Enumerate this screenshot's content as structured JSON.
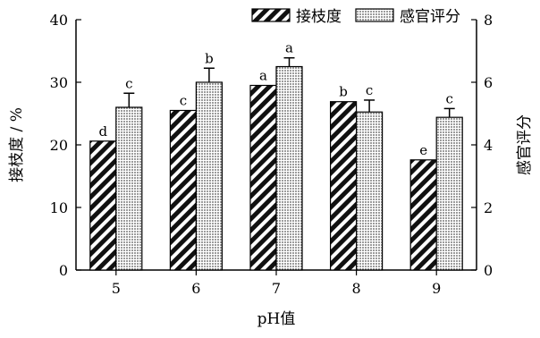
{
  "chart_data": {
    "type": "bar",
    "xlabel": "pH值",
    "ylabel_left": "接枝度 / %",
    "ylabel_right": "感官评分",
    "categories": [
      "5",
      "6",
      "7",
      "8",
      "9"
    ],
    "ylim_left": [
      0,
      40
    ],
    "yticks_left": [
      "0",
      "10",
      "20",
      "30",
      "40"
    ],
    "ylim_right": [
      0,
      8
    ],
    "yticks_right": [
      "0",
      "2",
      "4",
      "6",
      "8"
    ],
    "grid": false,
    "legend_position": "top-right",
    "series": [
      {
        "name": "接枝度",
        "axis": "left",
        "pattern": "diagonal-stripes",
        "values": [
          20.6,
          25.5,
          29.5,
          26.9,
          17.6
        ],
        "errors": [
          0,
          0,
          0,
          0,
          0
        ],
        "labels": [
          "d",
          "c",
          "a",
          "b",
          "e"
        ]
      },
      {
        "name": "感官评分",
        "axis": "right",
        "pattern": "dots",
        "values": [
          5.2,
          6.0,
          6.5,
          5.05,
          4.88
        ],
        "errors": [
          0.45,
          0.45,
          0.28,
          0.38,
          0.28
        ],
        "labels": [
          "c",
          "b",
          "a",
          "c",
          "c"
        ]
      }
    ]
  }
}
